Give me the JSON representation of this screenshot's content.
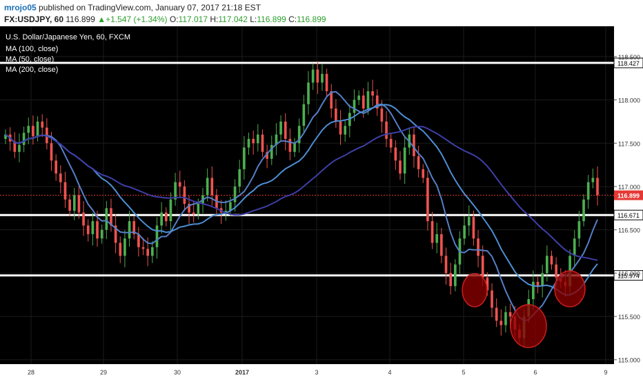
{
  "header": {
    "author": "mrojo05",
    "published_text": " published on TradingView.com, January 07, 2017 21:18 EST",
    "symbol": "FX:USDJPY, 60",
    "last": "116.899",
    "change_arrow": "▲",
    "change": "+1.547 (+1.34%)",
    "o_label": "O:",
    "o_value": "117.017",
    "h_label": "H:",
    "h_value": "117.042",
    "l_label": "L:",
    "l_value": "116.899",
    "c_label": "C:",
    "c_value": "116.899"
  },
  "legend": {
    "title": "U.S. Dollar/Japanese Yen, 60, FXCM",
    "ma1": "MA (100, close)",
    "ma2": "MA (50, close)",
    "ma3": "MA (200, close)"
  },
  "colors": {
    "background": "#000000",
    "up": "#4caf50",
    "down": "#ef5350",
    "ma100": "#4d8fd6",
    "ma50": "#5580c9",
    "ma200": "#3f3fa8",
    "circle": "#8b0000",
    "level_line": "#ffffff",
    "last_price_badge": "#e53935"
  },
  "chart_data": {
    "type": "candlestick",
    "title": "U.S. Dollar/Japanese Yen, 60, FXCM",
    "y_ticks": [
      "118.500",
      "118.000",
      "117.500",
      "117.000",
      "116.500",
      "116.000",
      "115.500",
      "115.000"
    ],
    "x_ticks": [
      "28",
      "29",
      "30",
      "2017",
      "3",
      "4",
      "5",
      "6",
      "9"
    ],
    "ylim": [
      114.95,
      118.85
    ],
    "horizontal_levels": [
      {
        "value": 118.427,
        "label": "118.427"
      },
      {
        "value": 116.671,
        "label": "116.671"
      },
      {
        "value": 115.974,
        "label": "115.974"
      }
    ],
    "last_price": {
      "value": 116.899,
      "label": "116.899"
    },
    "closes": [
      117.6,
      117.52,
      117.4,
      117.48,
      117.62,
      117.7,
      117.58,
      117.75,
      117.68,
      117.5,
      117.3,
      117.15,
      117.05,
      116.85,
      116.72,
      116.9,
      116.7,
      116.55,
      116.45,
      116.6,
      116.4,
      116.5,
      116.75,
      116.55,
      116.35,
      116.2,
      116.4,
      116.6,
      116.45,
      116.3,
      116.28,
      116.2,
      116.3,
      116.55,
      116.7,
      116.6,
      116.85,
      117.05,
      117.0,
      116.8,
      116.7,
      116.68,
      116.8,
      116.9,
      117.1,
      116.9,
      116.75,
      116.7,
      116.72,
      116.82,
      117.0,
      117.2,
      117.45,
      117.55,
      117.5,
      117.6,
      117.4,
      117.32,
      117.48,
      117.6,
      117.75,
      117.55,
      117.4,
      117.5,
      117.7,
      117.95,
      118.2,
      118.35,
      118.2,
      118.3,
      118.1,
      117.9,
      117.75,
      117.6,
      117.7,
      117.85,
      118.0,
      118.05,
      117.9,
      118.1,
      118.05,
      117.9,
      117.75,
      117.55,
      117.45,
      117.3,
      117.15,
      117.45,
      117.6,
      117.35,
      117.2,
      117.1,
      116.6,
      116.35,
      116.45,
      116.2,
      116.0,
      115.85,
      116.1,
      116.4,
      116.55,
      116.65,
      116.4,
      116.2,
      115.95,
      115.8,
      115.6,
      115.45,
      115.4,
      115.55,
      115.5,
      115.35,
      115.25,
      115.5,
      115.7,
      115.9,
      115.85,
      116.0,
      116.2,
      116.1,
      115.95,
      115.9,
      115.85,
      116.2,
      116.4,
      116.6,
      116.85,
      117.05,
      117.1,
      116.9
    ]
  }
}
